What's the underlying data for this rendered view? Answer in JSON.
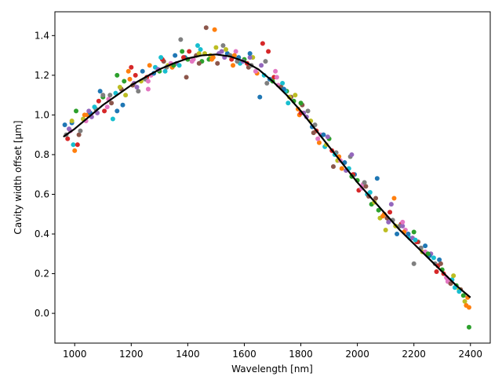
{
  "chart_data": {
    "type": "scatter",
    "title": "",
    "xlabel": "Wavelength [nm]",
    "ylabel": "Cavity width offset [μm]",
    "xlim": [
      930,
      2470
    ],
    "ylim": [
      -0.15,
      1.52
    ],
    "xticks": [
      1000,
      1200,
      1400,
      1600,
      1800,
      2000,
      2200,
      2400
    ],
    "yticks": [
      0.0,
      0.2,
      0.4,
      0.6,
      0.8,
      1.0,
      1.2,
      1.4
    ],
    "grid": false,
    "legend": "none",
    "scatter_colors": [
      "#1f77b4",
      "#ff7f0e",
      "#2ca02c",
      "#d62728",
      "#9467bd",
      "#8c564b",
      "#e377c2",
      "#7f7f7f",
      "#bcbd22",
      "#17becf"
    ],
    "fit_color": "#000000",
    "fit_line": {
      "x": [
        960,
        1000,
        1050,
        1100,
        1150,
        1200,
        1250,
        1300,
        1350,
        1400,
        1450,
        1500,
        1550,
        1600,
        1650,
        1700,
        1750,
        1800,
        1850,
        1900,
        1950,
        2000,
        2050,
        2100,
        2150,
        2200,
        2250,
        2300,
        2350,
        2400
      ],
      "y": [
        0.89,
        0.93,
        0.99,
        1.05,
        1.1,
        1.15,
        1.19,
        1.23,
        1.26,
        1.285,
        1.3,
        1.305,
        1.295,
        1.27,
        1.23,
        1.17,
        1.1,
        1.02,
        0.93,
        0.84,
        0.75,
        0.66,
        0.58,
        0.5,
        0.42,
        0.35,
        0.28,
        0.21,
        0.14,
        0.08
      ]
    },
    "series": [
      {
        "x": [
          965,
          975,
          985,
          995,
          1005,
          1015,
          1030,
          1045,
          1060,
          1075,
          1090,
          1105,
          1120,
          1135,
          1150,
          1165,
          1180,
          1195,
          1210,
          1225,
          1240,
          1255,
          1270,
          1285,
          1300,
          1315,
          1330,
          1345,
          1360,
          1375,
          1390,
          1405,
          1420,
          1435,
          1450,
          1465,
          1480,
          1495,
          1510,
          1525,
          1540,
          1555,
          1570,
          1585,
          1600,
          1615,
          1630,
          1645,
          1660,
          1675,
          1690,
          1705,
          1720,
          1735,
          1750,
          1765,
          1780,
          1795,
          1810,
          1825,
          1840,
          1855,
          1870,
          1885,
          1900,
          1915,
          1930,
          1945,
          1960,
          1975,
          1990,
          2005,
          2020,
          2035,
          2050,
          2065,
          2080,
          2095,
          2110,
          2125,
          2140,
          2155,
          2170,
          2185,
          2200,
          2215,
          2230,
          2245,
          2260,
          2275,
          2290,
          2305,
          2320,
          2335,
          2350,
          2365,
          2380,
          2395
        ],
        "y": [
          0.95,
          0.88,
          0.92,
          0.85,
          1.02,
          0.9,
          0.98,
          1.0,
          0.99,
          1.03,
          1.12,
          1.02,
          1.08,
          0.98,
          1.2,
          1.13,
          1.1,
          1.18,
          1.16,
          1.12,
          1.22,
          1.19,
          1.2,
          1.24,
          1.22,
          1.27,
          1.25,
          1.24,
          1.26,
          1.38,
          1.29,
          1.32,
          1.28,
          1.35,
          1.27,
          1.44,
          1.3,
          1.43,
          1.31,
          1.35,
          1.31,
          1.28,
          1.32,
          1.26,
          1.28,
          1.24,
          1.29,
          1.21,
          1.25,
          1.27,
          1.18,
          1.19,
          1.15,
          1.16,
          1.12,
          1.09,
          1.1,
          1.0,
          1.01,
          1.02,
          0.94,
          0.92,
          0.9,
          0.84,
          0.88,
          0.74,
          0.77,
          0.73,
          0.72,
          0.79,
          0.7,
          0.62,
          0.65,
          0.6,
          0.55,
          0.58,
          0.48,
          0.5,
          0.46,
          0.47,
          0.4,
          0.45,
          0.42,
          0.38,
          0.41,
          0.36,
          0.31,
          0.3,
          0.3,
          0.25,
          0.27,
          0.2,
          0.16,
          0.17,
          0.14,
          0.12,
          0.06,
          0.03
        ]
      },
      {
        "x": [
          970,
          990,
          1010,
          1040,
          1070,
          1100,
          1130,
          1160,
          1190,
          1220,
          1250,
          1280,
          1310,
          1340,
          1370,
          1400,
          1430,
          1460,
          1490,
          1520,
          1550,
          1580,
          1610,
          1640,
          1670,
          1700,
          1730,
          1760,
          1790,
          1820,
          1850,
          1880,
          1910,
          1940,
          1970,
          2000,
          2030,
          2060,
          2090,
          2120,
          2150,
          2180,
          2210,
          2240,
          2270,
          2300,
          2330,
          2360,
          2390
        ],
        "y": [
          0.9,
          0.96,
          0.85,
          0.97,
          1.04,
          1.09,
          1.06,
          1.14,
          1.22,
          1.14,
          1.18,
          1.21,
          1.28,
          1.26,
          1.25,
          1.28,
          1.3,
          1.31,
          1.29,
          1.32,
          1.3,
          1.29,
          1.26,
          1.22,
          1.2,
          1.17,
          1.14,
          1.09,
          1.03,
          0.99,
          0.95,
          0.9,
          0.82,
          0.77,
          0.73,
          0.67,
          0.64,
          0.56,
          0.49,
          0.55,
          0.44,
          0.4,
          0.36,
          0.31,
          0.28,
          0.22,
          0.15,
          0.12,
          0.08
        ]
      },
      {
        "x": [
          980,
          1020,
          1055,
          1085,
          1115,
          1145,
          1175,
          1205,
          1235,
          1265,
          1295,
          1325,
          1355,
          1385,
          1415,
          1445,
          1475,
          1505,
          1535,
          1565,
          1595,
          1625,
          1655,
          1685,
          1715,
          1745,
          1775,
          1805,
          1835,
          1865,
          1895,
          1925,
          1955,
          1985,
          2015,
          2045,
          2075,
          2105,
          2135,
          2165,
          2195,
          2225,
          2255,
          2285,
          2315,
          2345,
          2375
        ],
        "y": [
          0.93,
          0.92,
          1.01,
          1.07,
          1.04,
          1.11,
          1.17,
          1.15,
          1.17,
          1.25,
          1.23,
          1.24,
          1.3,
          1.29,
          1.27,
          1.33,
          1.28,
          1.26,
          1.33,
          1.3,
          1.27,
          1.25,
          1.09,
          1.32,
          1.19,
          1.12,
          1.07,
          1.05,
          0.97,
          0.86,
          0.89,
          0.81,
          0.76,
          0.7,
          0.63,
          0.61,
          0.52,
          0.48,
          0.44,
          0.41,
          0.38,
          0.33,
          0.29,
          0.24,
          0.18,
          0.13,
          0.09
        ]
      },
      {
        "x": [
          1000,
          1050,
          1100,
          1150,
          1200,
          1260,
          1320,
          1380,
          1440,
          1500,
          1560,
          1620,
          1680,
          1740,
          1800,
          1860,
          1920,
          1980,
          2040,
          2100,
          2130,
          2160,
          2200,
          2240,
          2280,
          2320,
          2360,
          2395
        ],
        "y": [
          0.82,
          1.02,
          1.1,
          1.02,
          1.24,
          1.17,
          1.22,
          1.32,
          1.26,
          1.34,
          1.25,
          1.29,
          1.16,
          1.13,
          1.01,
          0.88,
          0.8,
          0.69,
          0.59,
          0.42,
          0.58,
          0.44,
          0.25,
          0.34,
          0.21,
          0.17,
          0.11,
          -0.07
        ]
      },
      {
        "x": [
          990,
          1035,
          1080,
          1125,
          1170,
          1215,
          1260,
          1305,
          1350,
          1395,
          1440,
          1485,
          1530,
          1575,
          1620,
          1665,
          1710,
          1755,
          1800,
          1845,
          1890,
          1935,
          1980,
          2025,
          2070,
          2115,
          2160,
          2205,
          2250,
          2295,
          2340,
          2385
        ],
        "y": [
          0.97,
          1.0,
          1.01,
          1.1,
          1.05,
          1.2,
          1.13,
          1.29,
          1.25,
          1.19,
          1.31,
          1.28,
          1.29,
          1.27,
          1.31,
          1.36,
          1.22,
          1.06,
          1.06,
          0.91,
          0.85,
          0.79,
          0.8,
          0.66,
          0.68,
          0.51,
          0.46,
          0.37,
          0.3,
          0.25,
          0.19,
          0.04
        ]
      }
    ]
  }
}
